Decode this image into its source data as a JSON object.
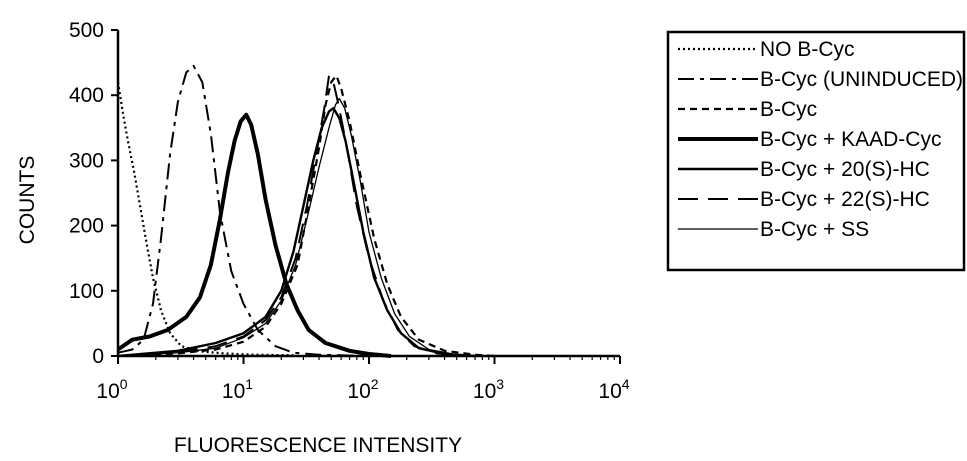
{
  "chart_data": {
    "type": "line",
    "title": "",
    "xlabel": "FLUORESCENCE INTENSITY",
    "ylabel": "COUNTS",
    "x_scale": "log",
    "xlim": [
      1,
      10000
    ],
    "ylim": [
      0,
      500
    ],
    "x_ticks": [
      {
        "base": "10",
        "exp": "0"
      },
      {
        "base": "10",
        "exp": "1"
      },
      {
        "base": "10",
        "exp": "2"
      },
      {
        "base": "10",
        "exp": "3"
      },
      {
        "base": "10",
        "exp": "4"
      }
    ],
    "y_ticks": [
      "0",
      "100",
      "200",
      "300",
      "400",
      "500"
    ],
    "legend_position": "right",
    "grid": false,
    "series": [
      {
        "name": "NO B-Cyc",
        "style": "dotted",
        "points": [
          [
            1,
            420
          ],
          [
            1.1,
            370
          ],
          [
            1.2,
            330
          ],
          [
            1.35,
            280
          ],
          [
            1.5,
            230
          ],
          [
            1.7,
            170
          ],
          [
            1.9,
            120
          ],
          [
            2.2,
            70
          ],
          [
            2.6,
            35
          ],
          [
            3.2,
            15
          ],
          [
            4.5,
            7
          ],
          [
            7,
            4
          ],
          [
            12,
            2
          ],
          [
            25,
            1
          ]
        ]
      },
      {
        "name": "B-Cyc (UNINDUCED)",
        "style": "dash-long",
        "points": [
          [
            1,
            5
          ],
          [
            1.3,
            10
          ],
          [
            1.6,
            25
          ],
          [
            1.9,
            80
          ],
          [
            2.2,
            180
          ],
          [
            2.6,
            310
          ],
          [
            3,
            390
          ],
          [
            3.5,
            435
          ],
          [
            4,
            445
          ],
          [
            4.7,
            420
          ],
          [
            5.5,
            340
          ],
          [
            6.5,
            220
          ],
          [
            8,
            130
          ],
          [
            10,
            80
          ],
          [
            13,
            40
          ],
          [
            18,
            15
          ],
          [
            25,
            5
          ],
          [
            40,
            2
          ],
          [
            100,
            0
          ]
        ]
      },
      {
        "name": "B-Cyc",
        "style": "dashed",
        "points": [
          [
            1,
            0
          ],
          [
            3,
            4
          ],
          [
            6,
            10
          ],
          [
            10,
            22
          ],
          [
            15,
            45
          ],
          [
            20,
            80
          ],
          [
            27,
            140
          ],
          [
            33,
            230
          ],
          [
            40,
            320
          ],
          [
            45,
            385
          ],
          [
            50,
            420
          ],
          [
            55,
            430
          ],
          [
            60,
            410
          ],
          [
            70,
            360
          ],
          [
            85,
            280
          ],
          [
            110,
            180
          ],
          [
            140,
            110
          ],
          [
            180,
            60
          ],
          [
            250,
            25
          ],
          [
            400,
            8
          ],
          [
            700,
            2
          ],
          [
            1000,
            0
          ]
        ]
      },
      {
        "name": "B-Cyc + KAAD-Cyc",
        "style": "thick",
        "points": [
          [
            1,
            10
          ],
          [
            1.3,
            25
          ],
          [
            1.8,
            30
          ],
          [
            2.5,
            40
          ],
          [
            3.5,
            60
          ],
          [
            4.5,
            90
          ],
          [
            5.5,
            140
          ],
          [
            6.5,
            210
          ],
          [
            7.5,
            280
          ],
          [
            8.5,
            330
          ],
          [
            9.5,
            360
          ],
          [
            10.5,
            370
          ],
          [
            11.5,
            355
          ],
          [
            13,
            310
          ],
          [
            15,
            240
          ],
          [
            18,
            170
          ],
          [
            22,
            110
          ],
          [
            27,
            70
          ],
          [
            33,
            40
          ],
          [
            45,
            20
          ],
          [
            70,
            8
          ],
          [
            100,
            3
          ],
          [
            150,
            0
          ]
        ]
      },
      {
        "name": "B-Cyc + 20(S)-HC",
        "style": "solid",
        "points": [
          [
            1,
            0
          ],
          [
            3,
            8
          ],
          [
            6,
            20
          ],
          [
            10,
            35
          ],
          [
            15,
            60
          ],
          [
            20,
            100
          ],
          [
            25,
            160
          ],
          [
            30,
            230
          ],
          [
            36,
            300
          ],
          [
            42,
            350
          ],
          [
            48,
            375
          ],
          [
            52,
            380
          ],
          [
            58,
            365
          ],
          [
            65,
            330
          ],
          [
            75,
            270
          ],
          [
            90,
            190
          ],
          [
            110,
            120
          ],
          [
            140,
            70
          ],
          [
            180,
            35
          ],
          [
            250,
            12
          ],
          [
            400,
            3
          ],
          [
            700,
            0
          ]
        ]
      },
      {
        "name": "B-Cyc + 22(S)-HC",
        "style": "dash-xlong",
        "points": [
          [
            1,
            0
          ],
          [
            3,
            6
          ],
          [
            6,
            15
          ],
          [
            10,
            30
          ],
          [
            15,
            55
          ],
          [
            20,
            90
          ],
          [
            26,
            150
          ],
          [
            32,
            230
          ],
          [
            38,
            310
          ],
          [
            44,
            380
          ],
          [
            48,
            430
          ],
          [
            52,
            420
          ],
          [
            58,
            380
          ],
          [
            68,
            310
          ],
          [
            80,
            230
          ],
          [
            100,
            150
          ],
          [
            130,
            85
          ],
          [
            170,
            40
          ],
          [
            230,
            15
          ],
          [
            350,
            4
          ],
          [
            600,
            0
          ]
        ]
      },
      {
        "name": "B-Cyc + SS",
        "style": "thin",
        "points": [
          [
            1,
            0
          ],
          [
            3,
            5
          ],
          [
            6,
            12
          ],
          [
            10,
            28
          ],
          [
            15,
            50
          ],
          [
            20,
            85
          ],
          [
            26,
            140
          ],
          [
            32,
            210
          ],
          [
            40,
            290
          ],
          [
            48,
            350
          ],
          [
            54,
            385
          ],
          [
            58,
            395
          ],
          [
            64,
            380
          ],
          [
            72,
            340
          ],
          [
            85,
            270
          ],
          [
            100,
            190
          ],
          [
            125,
            120
          ],
          [
            160,
            65
          ],
          [
            210,
            30
          ],
          [
            300,
            10
          ],
          [
            500,
            2
          ],
          [
            900,
            0
          ]
        ]
      }
    ]
  }
}
